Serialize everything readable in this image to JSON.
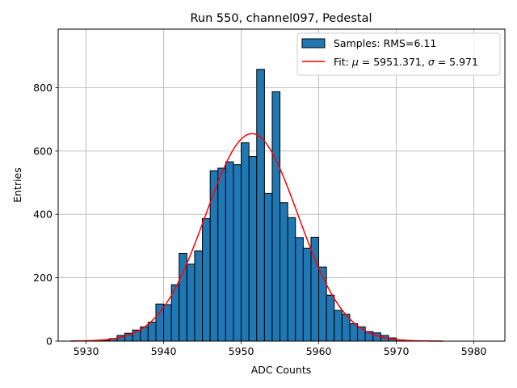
{
  "chart_data": {
    "type": "bar",
    "title": "Run 550, channel097, Pedestal",
    "xlabel": "ADC Counts",
    "ylabel": "Entries",
    "xlim": [
      5926.4,
      5984.0
    ],
    "ylim": [
      0,
      985
    ],
    "grid": true,
    "legend_position": "top-right",
    "bin_width": 1,
    "x_ticks": [
      5930,
      5940,
      5950,
      5960,
      5970,
      5980
    ],
    "y_ticks": [
      0,
      200,
      400,
      600,
      800
    ],
    "bar_color": "#1f77b4",
    "fit_color": "#ff0000",
    "histogram": {
      "name": "Samples: RMS=6.11",
      "bin_starts": [
        5932,
        5933,
        5934,
        5935,
        5936,
        5937,
        5938,
        5939,
        5940,
        5941,
        5942,
        5943,
        5944,
        5945,
        5946,
        5947,
        5948,
        5949,
        5950,
        5951,
        5952,
        5953,
        5954,
        5955,
        5956,
        5957,
        5958,
        5959,
        5960,
        5961,
        5962,
        5963,
        5964,
        5965,
        5966,
        5967,
        5968,
        5969,
        5970
      ],
      "counts": [
        3,
        8,
        18,
        25,
        35,
        45,
        60,
        117,
        115,
        178,
        277,
        243,
        285,
        387,
        538,
        546,
        566,
        557,
        626,
        583,
        858,
        466,
        787,
        437,
        390,
        327,
        293,
        328,
        234,
        145,
        97,
        85,
        55,
        45,
        30,
        26,
        18,
        10,
        4
      ]
    },
    "fit": {
      "name": "Fit: μ = 5951.371, σ = 5.971",
      "label_prefix": "Fit: ",
      "mu_symbol": "μ",
      "mu_text": " = 5951.371, ",
      "sigma_symbol": "σ",
      "sigma_text": " = 5.971",
      "mu": 5951.371,
      "sigma": 5.971,
      "amplitude": 655,
      "x_range": [
        5928,
        5976
      ]
    }
  }
}
